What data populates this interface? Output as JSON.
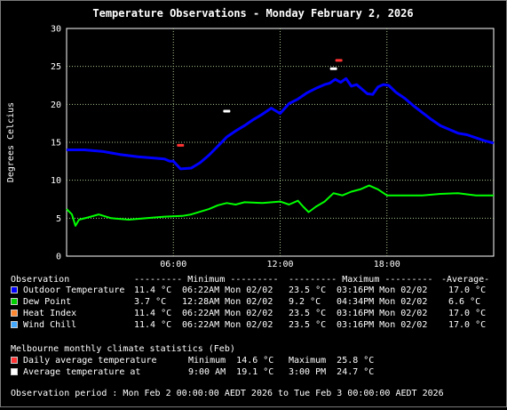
{
  "chart_data": {
    "type": "line",
    "title": "Temperature Observations - Monday February 2, 2026",
    "ylabel": "Degrees Celcius",
    "ylim": [
      0,
      30
    ],
    "xlim": [
      0,
      24
    ],
    "yticks": [
      "0",
      "5",
      "10",
      "15",
      "20",
      "25",
      "30"
    ],
    "xticks": [
      {
        "x": 6,
        "label": "06:00"
      },
      {
        "x": 12,
        "label": "12:00"
      },
      {
        "x": 18,
        "label": "18:00"
      }
    ],
    "grid": true,
    "series": [
      {
        "name": "Outdoor Temperature",
        "color": "#0000ff",
        "points": [
          [
            0,
            14.0
          ],
          [
            1,
            14.0
          ],
          [
            2,
            13.8
          ],
          [
            3,
            13.4
          ],
          [
            4,
            13.1
          ],
          [
            5,
            12.9
          ],
          [
            5.5,
            12.8
          ],
          [
            5.8,
            12.5
          ],
          [
            6.0,
            12.5
          ],
          [
            6.4,
            11.5
          ],
          [
            7.0,
            11.6
          ],
          [
            7.5,
            12.3
          ],
          [
            8.0,
            13.3
          ],
          [
            8.5,
            14.5
          ],
          [
            9.0,
            15.7
          ],
          [
            9.5,
            16.5
          ],
          [
            10.0,
            17.2
          ],
          [
            10.5,
            18.0
          ],
          [
            11.0,
            18.7
          ],
          [
            11.5,
            19.5
          ],
          [
            12.0,
            18.8
          ],
          [
            12.5,
            20.1
          ],
          [
            13.0,
            20.7
          ],
          [
            13.5,
            21.5
          ],
          [
            14.0,
            22.1
          ],
          [
            14.5,
            22.6
          ],
          [
            14.8,
            22.8
          ],
          [
            15.1,
            23.3
          ],
          [
            15.4,
            22.9
          ],
          [
            15.7,
            23.4
          ],
          [
            16.0,
            22.4
          ],
          [
            16.3,
            22.6
          ],
          [
            16.6,
            22.0
          ],
          [
            16.9,
            21.4
          ],
          [
            17.2,
            21.3
          ],
          [
            17.5,
            22.3
          ],
          [
            17.8,
            22.6
          ],
          [
            18.1,
            22.5
          ],
          [
            18.5,
            21.6
          ],
          [
            19.0,
            20.8
          ],
          [
            19.5,
            19.8
          ],
          [
            20.0,
            18.9
          ],
          [
            20.5,
            18.0
          ],
          [
            21.0,
            17.2
          ],
          [
            21.5,
            16.7
          ],
          [
            22.0,
            16.2
          ],
          [
            22.5,
            16.0
          ],
          [
            23.0,
            15.6
          ],
          [
            23.5,
            15.2
          ],
          [
            24.0,
            14.9
          ]
        ]
      },
      {
        "name": "Dew Point",
        "color": "#00ff00",
        "points": [
          [
            0,
            6.2
          ],
          [
            0.3,
            5.5
          ],
          [
            0.5,
            4.0
          ],
          [
            0.7,
            4.8
          ],
          [
            1.2,
            5.1
          ],
          [
            1.8,
            5.5
          ],
          [
            2.5,
            5.0
          ],
          [
            3.5,
            4.8
          ],
          [
            4.5,
            5.0
          ],
          [
            5.5,
            5.2
          ],
          [
            6.5,
            5.3
          ],
          [
            7.0,
            5.5
          ],
          [
            8.0,
            6.2
          ],
          [
            8.5,
            6.7
          ],
          [
            9.0,
            7.0
          ],
          [
            9.5,
            6.8
          ],
          [
            10.0,
            7.1
          ],
          [
            11.0,
            7.0
          ],
          [
            12.0,
            7.2
          ],
          [
            12.5,
            6.8
          ],
          [
            13.0,
            7.3
          ],
          [
            13.3,
            6.5
          ],
          [
            13.6,
            5.8
          ],
          [
            14.0,
            6.5
          ],
          [
            14.5,
            7.2
          ],
          [
            15.0,
            8.3
          ],
          [
            15.5,
            8.0
          ],
          [
            16.0,
            8.5
          ],
          [
            16.5,
            8.8
          ],
          [
            17.0,
            9.3
          ],
          [
            17.5,
            8.8
          ],
          [
            18.0,
            8.0
          ],
          [
            19.0,
            8.0
          ],
          [
            20.0,
            8.0
          ],
          [
            21.0,
            8.2
          ],
          [
            22.0,
            8.3
          ],
          [
            23.0,
            8.0
          ],
          [
            24.0,
            8.0
          ]
        ]
      }
    ],
    "markers": [
      {
        "name": "Daily average temperature",
        "color": "#ff3333",
        "points": [
          [
            6.4,
            14.6
          ],
          [
            15.3,
            25.8
          ]
        ]
      },
      {
        "name": "Average temperature at",
        "color": "#ffffff",
        "points": [
          [
            9.0,
            19.1
          ],
          [
            15.0,
            24.7
          ]
        ]
      }
    ]
  },
  "table": {
    "header": [
      "Observation",
      "--------- Minimum ---------",
      "--------- Maximum ---------",
      "-Average-"
    ],
    "rows": [
      {
        "swatch": "#0000ff",
        "name": "Outdoor Temperature",
        "min": "11.4 °C",
        "min_time": "06:22AM Mon 02/02",
        "max": "23.5 °C",
        "max_time": "03:16PM Mon 02/02",
        "avg": "17.0 °C"
      },
      {
        "swatch": "#00d000",
        "name": "Dew Point",
        "min": "3.7 °C",
        "min_time": "12:28AM Mon 02/02",
        "max": "9.2 °C",
        "max_time": "04:34PM Mon 02/02",
        "avg": "6.6 °C"
      },
      {
        "swatch": "#ff8833",
        "name": "Heat Index",
        "min": "11.4 °C",
        "min_time": "06:22AM Mon 02/02",
        "max": "23.5 °C",
        "max_time": "03:16PM Mon 02/02",
        "avg": "17.0 °C"
      },
      {
        "swatch": "#44aaff",
        "name": "Wind Chill",
        "min": "11.4 °C",
        "min_time": "06:22AM Mon 02/02",
        "max": "23.5 °C",
        "max_time": "03:16PM Mon 02/02",
        "avg": "17.0 °C"
      }
    ]
  },
  "climate": {
    "heading": "Melbourne monthly climate statistics (Feb)",
    "rows": [
      {
        "swatch": "#ff3333",
        "label": "Daily average temperature",
        "a": "Minimum  14.6 °C",
        "b": "Maximum  25.8 °C"
      },
      {
        "swatch": "#ffffff",
        "label": "Average temperature at",
        "a": "9:00 AM  19.1 °C",
        "b": "3:00 PM  24.7 °C"
      }
    ]
  },
  "period": "Observation period : Mon Feb 2 00:00:00 AEDT 2026 to Tue Feb 3 00:00:00 AEDT 2026"
}
